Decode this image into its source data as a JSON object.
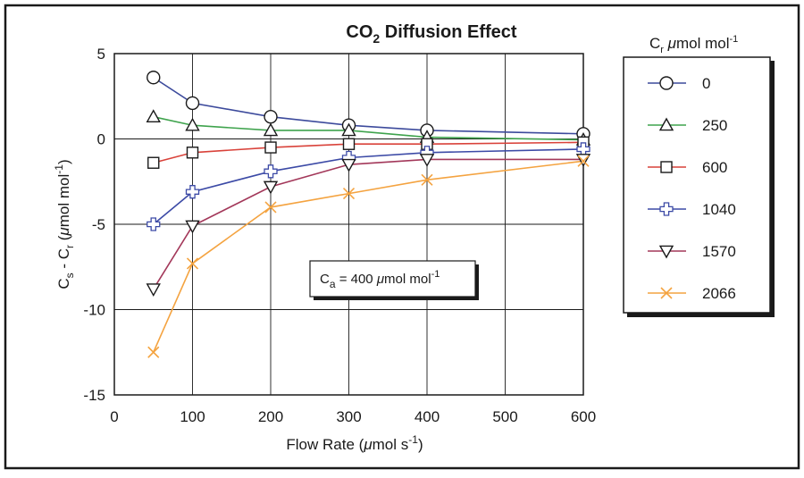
{
  "chart_data": {
    "type": "line",
    "title": {
      "main": "CO",
      "sub": "2",
      "rest": " Diffusion Effect"
    },
    "xlabel": {
      "pre": "Flow Rate (",
      "mu": "μ",
      "mid": "mol s",
      "sup": "-1",
      "post": ")"
    },
    "ylabel": {
      "c1": "C",
      "s1": "s",
      "dash": " - C",
      "s2": "r",
      "open": " (",
      "mu": "μ",
      "unit": "mol mol",
      "sup": "-1",
      "close": ")"
    },
    "xlim": [
      0,
      600
    ],
    "ylim": [
      -15,
      5
    ],
    "xticks": [
      0,
      100,
      200,
      300,
      400,
      500,
      600
    ],
    "yticks": [
      5,
      0,
      -5,
      -10,
      -15
    ],
    "grid": true,
    "legend_position": "right",
    "legend_title": {
      "c": "C",
      "sub": "r",
      "mu": " μ",
      "unit": "mol mol",
      "sup": "-1"
    },
    "annotation": {
      "c": "C",
      "sub": "a",
      "eq": " = 400 ",
      "mu": "μ",
      "unit": "mol mol",
      "sup": "-1"
    },
    "x": [
      50,
      100,
      200,
      300,
      400,
      600
    ],
    "series": [
      {
        "name": "0",
        "color": "#3c4a9c",
        "marker": "circle",
        "values": [
          3.6,
          2.1,
          1.3,
          0.8,
          0.5,
          0.3
        ]
      },
      {
        "name": "250",
        "color": "#3fa34d",
        "marker": "triangle-up",
        "values": [
          1.3,
          0.8,
          0.5,
          0.5,
          0.1,
          -0.05
        ]
      },
      {
        "name": "600",
        "color": "#d9423a",
        "marker": "square",
        "values": [
          -1.4,
          -0.8,
          -0.5,
          -0.3,
          -0.3,
          -0.2
        ]
      },
      {
        "name": "1040",
        "color": "#3c4aa6",
        "marker": "plus",
        "values": [
          -5.0,
          -3.1,
          -1.9,
          -1.1,
          -0.8,
          -0.6
        ]
      },
      {
        "name": "1570",
        "color": "#a3385a",
        "marker": "triangle-down",
        "values": [
          -8.8,
          -5.1,
          -2.8,
          -1.5,
          -1.2,
          -1.2
        ]
      },
      {
        "name": "2066",
        "color": "#f4a340",
        "marker": "x",
        "values": [
          -12.5,
          -7.3,
          -4.0,
          -3.2,
          -2.4,
          -1.3
        ]
      }
    ]
  }
}
